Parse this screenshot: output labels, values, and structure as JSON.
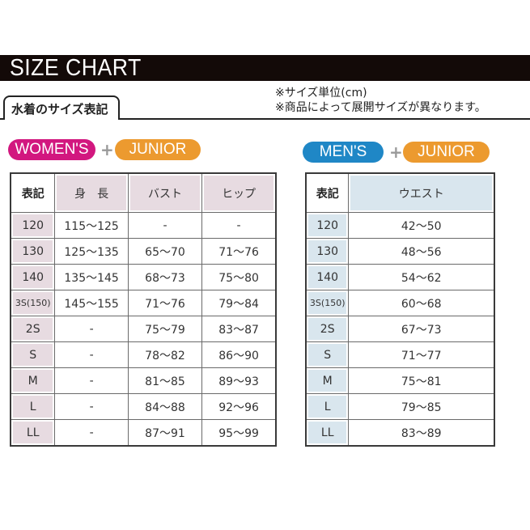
{
  "header": {
    "title": "SIZE CHART",
    "tab_label": "水着のサイズ表記",
    "notes": [
      "※サイズ単位(cm)",
      "※商品によって展開サイズが異なります。"
    ]
  },
  "colors": {
    "women": "#d2177f",
    "junior": "#ec9a2f",
    "men": "#1f87c6"
  },
  "women": {
    "badge": "WOMEN'S",
    "plus": "+",
    "junior": "JUNIOR",
    "columns": [
      "表記",
      "身　長",
      "バスト",
      "ヒップ"
    ],
    "rows": [
      [
        "120",
        "115～125",
        "-",
        "-"
      ],
      [
        "130",
        "125～135",
        "65～70",
        "71～76"
      ],
      [
        "140",
        "135～145",
        "68～73",
        "75～80"
      ],
      [
        "3S(150)",
        "145～155",
        "71～76",
        "79～84"
      ],
      [
        "2S",
        "-",
        "75～79",
        "83～87"
      ],
      [
        "S",
        "-",
        "78～82",
        "86～90"
      ],
      [
        "M",
        "-",
        "81～85",
        "89～93"
      ],
      [
        "L",
        "-",
        "84～88",
        "92～96"
      ],
      [
        "LL",
        "-",
        "87～91",
        "95～99"
      ]
    ]
  },
  "men": {
    "badge": "MEN'S",
    "plus": "+",
    "junior": "JUNIOR",
    "columns": [
      "表記",
      "ウエスト"
    ],
    "rows": [
      [
        "120",
        "42～50"
      ],
      [
        "130",
        "48～56"
      ],
      [
        "140",
        "54～62"
      ],
      [
        "3S(150)",
        "60～68"
      ],
      [
        "2S",
        "67～73"
      ],
      [
        "S",
        "71～77"
      ],
      [
        "M",
        "75～81"
      ],
      [
        "L",
        "79～85"
      ],
      [
        "LL",
        "83～89"
      ]
    ]
  }
}
